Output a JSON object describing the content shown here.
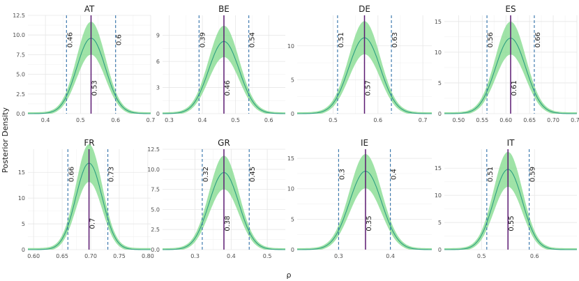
{
  "chart_data": {
    "type": "area",
    "xlabel": "ρ",
    "ylabel": "Posterior Density",
    "grid": true,
    "colors": {
      "band": "#7fd98a",
      "line": "#2e9e82",
      "median": "#5c1a72",
      "hdi": "#2f6fa8"
    },
    "panels": [
      {
        "title": "AT",
        "mean": 0.53,
        "sd": 0.041,
        "peak": 9.6,
        "lower": 0.46,
        "upper": 0.6,
        "median_label": "0.53",
        "lower_label": "0.46",
        "upper_label": "0.6",
        "xlim": [
          0.35,
          0.7
        ],
        "ylim": [
          0,
          12.5
        ],
        "xticks": [
          0.4,
          0.5,
          0.6,
          0.7
        ],
        "xtick_labels": [
          "0.4",
          "0.5",
          "0.6",
          "0.7"
        ],
        "yticks": [
          0,
          2.5,
          5,
          7.5,
          10,
          12.5
        ],
        "ytick_labels": [
          "0.0",
          "2.5",
          "5.0",
          "7.5",
          "10.0",
          "12.5"
        ]
      },
      {
        "title": "BE",
        "mean": 0.465,
        "sd": 0.046,
        "peak": 8.3,
        "lower": 0.39,
        "upper": 0.54,
        "median_label": "0.46",
        "lower_label": "0.39",
        "upper_label": "0.54",
        "xlim": [
          0.28,
          0.65
        ],
        "ylim": [
          0,
          11.3
        ],
        "xticks": [
          0.3,
          0.4,
          0.5,
          0.6
        ],
        "xtick_labels": [
          "0.3",
          "0.4",
          "0.5",
          "0.6"
        ],
        "yticks": [
          0,
          3,
          6,
          9
        ],
        "ytick_labels": [
          "0",
          "3",
          "6",
          "9"
        ]
      },
      {
        "title": "DE",
        "mean": 0.57,
        "sd": 0.035,
        "peak": 11.2,
        "lower": 0.51,
        "upper": 0.63,
        "median_label": "0.57",
        "lower_label": "0.51",
        "upper_label": "0.63",
        "xlim": [
          0.42,
          0.72
        ],
        "ylim": [
          0,
          14.5
        ],
        "xticks": [
          0.5,
          0.6,
          0.7
        ],
        "xtick_labels": [
          "0.5",
          "0.6",
          "0.7"
        ],
        "yticks": [
          0,
          5,
          10
        ],
        "ytick_labels": [
          "0",
          "5",
          "10"
        ]
      },
      {
        "title": "ES",
        "mean": 0.61,
        "sd": 0.032,
        "peak": 12.3,
        "lower": 0.56,
        "upper": 0.66,
        "median_label": "0.61",
        "lower_label": "0.56",
        "upper_label": "0.66",
        "xlim": [
          0.47,
          0.75
        ],
        "ylim": [
          0,
          16
        ],
        "xticks": [
          0.5,
          0.55,
          0.6,
          0.65,
          0.7,
          0.75
        ],
        "xtick_labels": [
          "0.50",
          "0.55",
          "0.60",
          "0.65",
          "0.70",
          "0.75"
        ],
        "yticks": [
          0,
          5,
          10,
          15
        ],
        "ytick_labels": [
          "0",
          "5",
          "10",
          "15"
        ]
      },
      {
        "title": "FR",
        "mean": 0.697,
        "sd": 0.023,
        "peak": 16.8,
        "lower": 0.66,
        "upper": 0.73,
        "median_label": "0.7",
        "lower_label": "0.66",
        "upper_label": "0.73",
        "xlim": [
          0.59,
          0.805
        ],
        "ylim": [
          0,
          19.5
        ],
        "xticks": [
          0.6,
          0.65,
          0.7,
          0.75,
          0.8
        ],
        "xtick_labels": [
          "0.60",
          "0.65",
          "0.70",
          "0.75",
          "0.80"
        ],
        "yticks": [
          0,
          5,
          10,
          15
        ],
        "ytick_labels": [
          "0",
          "5",
          "10",
          "15"
        ]
      },
      {
        "title": "GR",
        "mean": 0.38,
        "sd": 0.041,
        "peak": 9.6,
        "lower": 0.32,
        "upper": 0.45,
        "median_label": "0.38",
        "lower_label": "0.32",
        "upper_label": "0.45",
        "xlim": [
          0.21,
          0.55
        ],
        "ylim": [
          0,
          12.5
        ],
        "xticks": [
          0.3,
          0.4,
          0.5
        ],
        "xtick_labels": [
          "0.3",
          "0.4",
          "0.5"
        ],
        "yticks": [
          0,
          2.5,
          5,
          7.5,
          10,
          12.5
        ],
        "ytick_labels": [
          "0.0",
          "2.5",
          "5.0",
          "7.5",
          "10.0",
          "12.5"
        ]
      },
      {
        "title": "IE",
        "mean": 0.352,
        "sd": 0.031,
        "peak": 12.9,
        "lower": 0.3,
        "upper": 0.4,
        "median_label": "0.35",
        "lower_label": "0.3",
        "upper_label": "0.4",
        "xlim": [
          0.22,
          0.48
        ],
        "ylim": [
          0,
          16.5
        ],
        "xticks": [
          0.3,
          0.4
        ],
        "xtick_labels": [
          "0.3",
          "0.4"
        ],
        "yticks": [
          0,
          5,
          10,
          15
        ],
        "ytick_labels": [
          "0",
          "5",
          "10",
          "15"
        ]
      },
      {
        "title": "IT",
        "mean": 0.55,
        "sd": 0.027,
        "peak": 14.8,
        "lower": 0.51,
        "upper": 0.59,
        "median_label": "0.55",
        "lower_label": "0.51",
        "upper_label": "0.59",
        "xlim": [
          0.43,
          0.68
        ],
        "ylim": [
          0,
          18.5
        ],
        "xticks": [
          0.5,
          0.6
        ],
        "xtick_labels": [
          "0.5",
          "0.6"
        ],
        "yticks": [
          0,
          5,
          10,
          15
        ],
        "ytick_labels": [
          "0",
          "5",
          "10",
          "15"
        ]
      }
    ]
  }
}
